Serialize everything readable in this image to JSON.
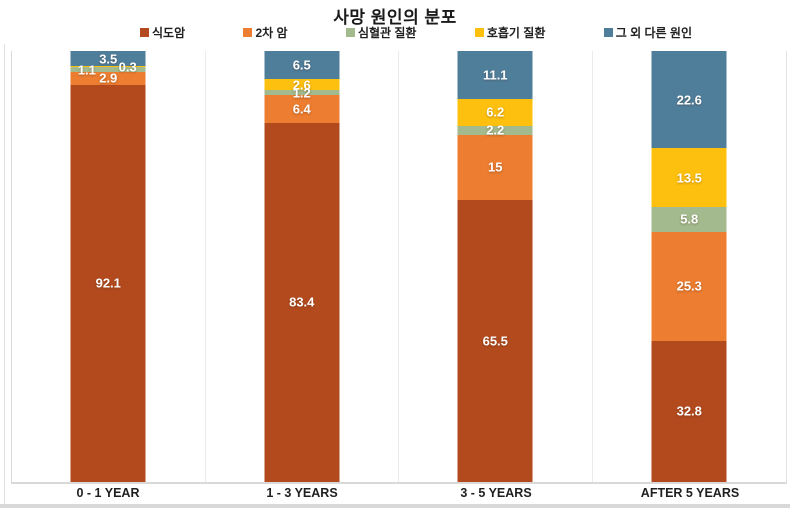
{
  "title": "사망 원인의 분포",
  "chart_data": {
    "type": "bar",
    "stacked": true,
    "unit": "%",
    "title": "사망 원인의 분포",
    "categories": [
      "0 - 1 YEAR",
      "1 - 3 YEARS",
      "3 - 5 YEARS",
      "AFTER 5 YEARS"
    ],
    "series": [
      {
        "name": "식도암",
        "color": "#B24A1E",
        "values": [
          92.1,
          83.4,
          65.5,
          32.8
        ]
      },
      {
        "name": "2차 암",
        "color": "#EC7D31",
        "values": [
          2.9,
          6.4,
          15,
          25.3
        ]
      },
      {
        "name": "심혈관 질환",
        "color": "#A2BA8D",
        "values": [
          1.1,
          1.2,
          2.2,
          5.8
        ]
      },
      {
        "name": "호흡기 질환",
        "color": "#FEC00E",
        "values": [
          0.3,
          2.6,
          6.2,
          13.5
        ]
      },
      {
        "name": "그 외 다른 원인",
        "color": "#4F7E9B",
        "values": [
          3.5,
          6.5,
          11.1,
          22.6
        ]
      }
    ],
    "ylim": [
      0,
      100
    ],
    "legend_position": "top",
    "grid": "category-separator-lines",
    "value_labels": "white-bold-inside-segments"
  }
}
